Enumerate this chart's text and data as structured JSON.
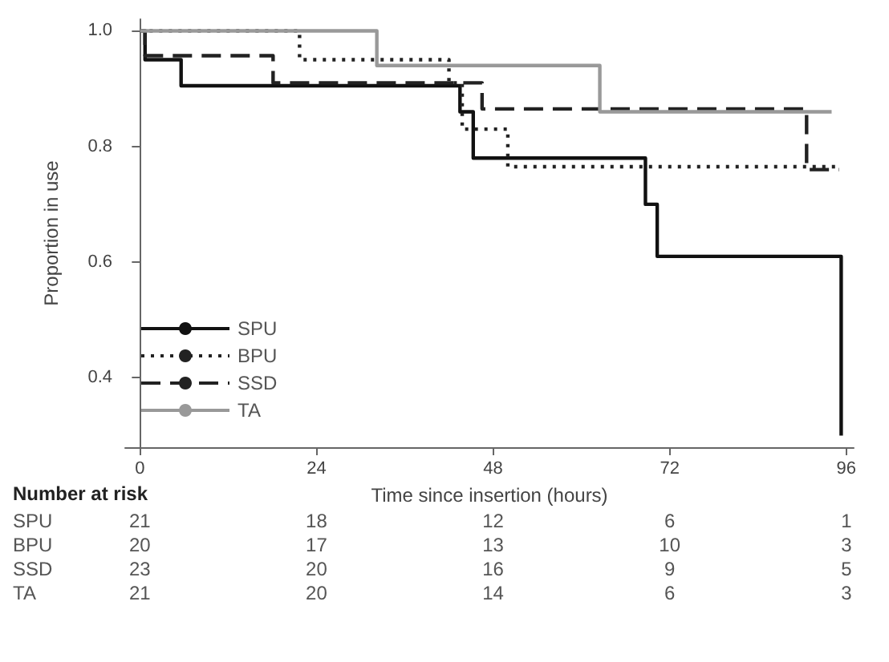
{
  "chart_data": {
    "type": "step",
    "xlabel": "Time since insertion (hours)",
    "ylabel": "Proportion in use",
    "xlim": [
      -2,
      97
    ],
    "xticks": [
      0,
      24,
      48,
      72,
      96
    ],
    "ylim": [
      0.28,
      1.02
    ],
    "yticks": [
      {
        "value": 0.4,
        "label": "0.4"
      },
      {
        "value": 0.6,
        "label": "0.6"
      },
      {
        "value": 0.8,
        "label": "0.8"
      },
      {
        "value": 1,
        "label": "1.0"
      }
    ],
    "grid": false,
    "legend": "bottom left",
    "marker": "none",
    "series": [
      {
        "name": "SPU",
        "color": "#111111",
        "line_style": "solid",
        "x": [
          0,
          0.7,
          5.6,
          43.5,
          45.3,
          68.7,
          70.3,
          95.3
        ],
        "values": [
          1.0,
          0.95,
          0.905,
          0.86,
          0.78,
          0.7,
          0.61,
          0.3
        ]
      },
      {
        "name": "BPU",
        "color": "#222222",
        "line_style": "dotted",
        "x": [
          0,
          21.7,
          42,
          43.8,
          50,
          95
        ],
        "values": [
          1.0,
          0.95,
          0.91,
          0.83,
          0.765,
          0.765
        ]
      },
      {
        "name": "SSD",
        "color": "#222222",
        "line_style": "dashed",
        "x": [
          0,
          0.7,
          18.1,
          46.5,
          90.6,
          95
        ],
        "values": [
          1.0,
          0.957,
          0.91,
          0.865,
          0.76,
          0.76
        ]
      },
      {
        "name": "TA",
        "color": "#999999",
        "line_style": "solid",
        "x": [
          0,
          32.2,
          62.5,
          94
        ],
        "values": [
          1.0,
          0.94,
          0.86,
          0.86
        ]
      }
    ],
    "annotations": [
      "Number at risk",
      "SPU",
      "21",
      "18",
      "12",
      "6",
      "1",
      "BPU",
      "20",
      "17",
      "13",
      "10",
      "3",
      "SSD",
      "23",
      "20",
      "16",
      "9",
      "5",
      "TA",
      "21",
      "20",
      "14",
      "6",
      "3"
    ]
  }
}
